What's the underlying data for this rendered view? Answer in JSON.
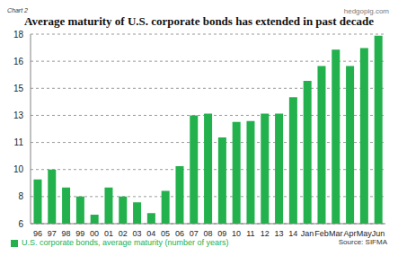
{
  "chart_data": {
    "type": "bar",
    "title": "Average maturity of U.S. corporate bonds has extended in past decade",
    "annotations": [
      "Chart 2",
      "hedgopig.com",
      "Source: SIFMA"
    ],
    "categories": [
      "96",
      "97",
      "98",
      "99",
      "00",
      "01",
      "02",
      "03",
      "04",
      "05",
      "06",
      "07",
      "08",
      "09",
      "10",
      "11",
      "12",
      "13",
      "14",
      "Jan",
      "Feb",
      "Mar",
      "Apr",
      "May",
      "Jun"
    ],
    "series": [
      {
        "name": "U.S. corporate bonds, average maturity (number of years)",
        "color": "#22b14c",
        "values": [
          9.0,
          9.6,
          8.5,
          7.95,
          6.85,
          8.5,
          7.95,
          7.6,
          6.95,
          8.3,
          9.8,
          12.9,
          13.0,
          11.55,
          12.5,
          12.55,
          13.0,
          13.0,
          14.0,
          15.0,
          15.9,
          16.9,
          15.9,
          17.0,
          17.75
        ]
      }
    ],
    "ylim": [
      6.3,
      17.85
    ],
    "yticks": [
      {
        "value": 6.3,
        "label": "6"
      },
      {
        "value": 7.95,
        "label": "8"
      },
      {
        "value": 9.6,
        "label": "10"
      },
      {
        "value": 11.25,
        "label": "11"
      },
      {
        "value": 12.9,
        "label": "13"
      },
      {
        "value": 14.55,
        "label": "15"
      },
      {
        "value": 16.2,
        "label": "16"
      },
      {
        "value": 17.85,
        "label": "18"
      }
    ],
    "grid": true,
    "legend": "bottom"
  }
}
